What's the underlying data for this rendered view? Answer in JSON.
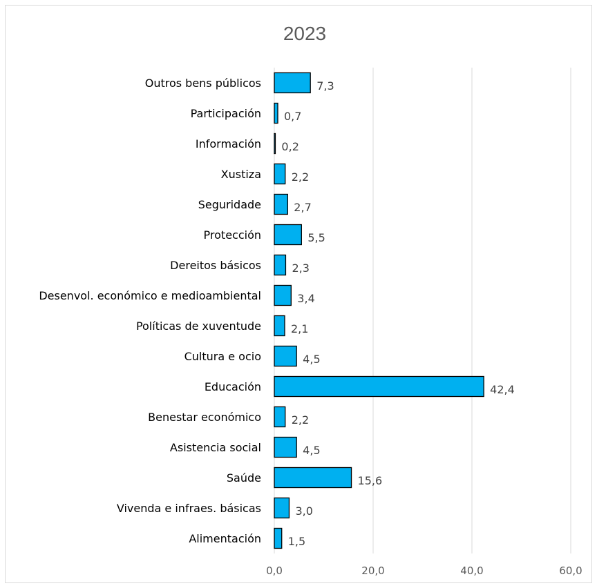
{
  "chart_data": {
    "type": "bar",
    "orientation": "horizontal",
    "title": "2023",
    "categories": [
      "Outros bens públicos",
      "Participación",
      "Información",
      "Xustiza",
      "Seguridade",
      "Protección",
      "Dereitos básicos",
      "Desenvol. económico e medioambiental",
      "Políticas de xuventude",
      "Cultura e ocio",
      "Educación",
      "Benestar económico",
      "Asistencia social",
      "Saúde",
      "Vivenda e infraes. básicas",
      "Alimentación"
    ],
    "values": [
      7.3,
      0.7,
      0.2,
      2.2,
      2.7,
      5.5,
      2.3,
      3.4,
      2.1,
      4.5,
      42.4,
      2.2,
      4.5,
      15.6,
      3.0,
      1.5
    ],
    "value_labels": [
      "7,3",
      "0,7",
      "0,2",
      "2,2",
      "2,7",
      "5,5",
      "2,3",
      "3,4",
      "2,1",
      "4,5",
      "42,4",
      "2,2",
      "4,5",
      "15,6",
      "3,0",
      "1,5"
    ],
    "xlim": [
      0,
      60
    ],
    "xticks": [
      0,
      20,
      40,
      60
    ],
    "xtick_labels": [
      "0,0",
      "20,0",
      "40,0",
      "60,0"
    ],
    "grid": true,
    "legend": "none",
    "bar_color": "#00b0f0",
    "bar_edge_color": "#000000",
    "grid_color": "#d9d9d9"
  }
}
